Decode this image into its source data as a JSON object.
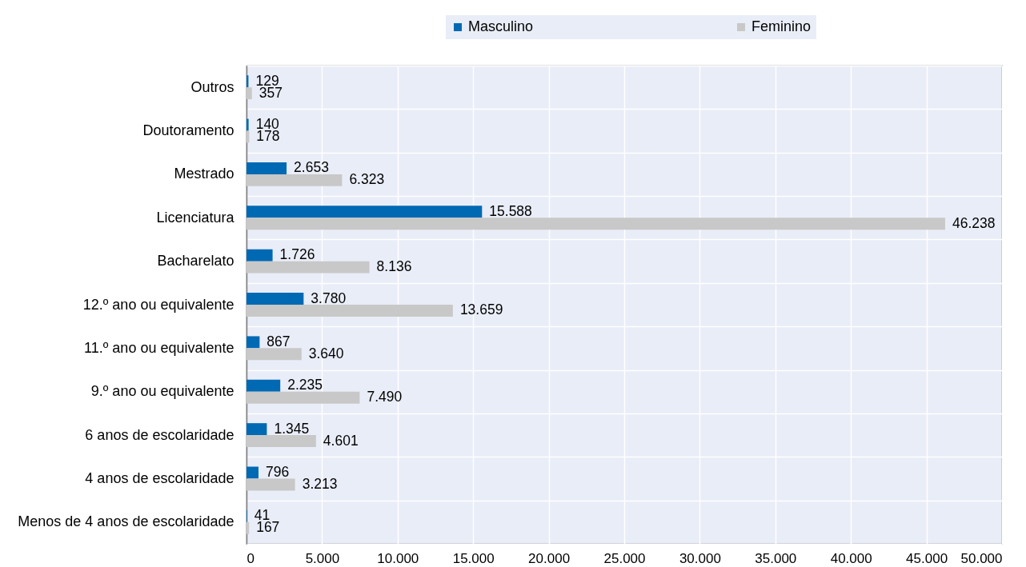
{
  "chart_data": {
    "type": "bar",
    "orientation": "horizontal",
    "legend": "top",
    "grid": true,
    "categories": [
      "Outros",
      "Doutoramento",
      "Mestrado",
      "Licenciatura",
      "Bacharelato",
      "12.º ano ou equivalente",
      "11.º ano ou equivalente",
      "9.º ano ou equivalente",
      "6 anos de escolaridade",
      "4 anos de escolaridade",
      "Menos de 4 anos de escolaridade"
    ],
    "series": [
      {
        "name": "Masculino",
        "color": "#0069b4",
        "values": [
          129,
          140,
          2653,
          15588,
          1726,
          3780,
          867,
          2235,
          1345,
          796,
          41
        ],
        "value_labels": [
          "129",
          "140",
          "2.653",
          "15.588",
          "1.726",
          "3.780",
          "867",
          "2.235",
          "1.345",
          "796",
          "41"
        ]
      },
      {
        "name": "Feminino",
        "color": "#c8c8c8",
        "values": [
          357,
          178,
          6323,
          46238,
          8136,
          13659,
          3640,
          7490,
          4601,
          3213,
          167
        ],
        "value_labels": [
          "357",
          "178",
          "6.323",
          "46.238",
          "8.136",
          "13.659",
          "3.640",
          "7.490",
          "4.601",
          "3.213",
          "167"
        ]
      }
    ],
    "xlim": [
      0,
      50000
    ],
    "xticks": [
      0,
      {
        "value": 5000,
        "label": "5.000"
      },
      {
        "value": 10000,
        "label": "10.000"
      },
      {
        "value": 15000,
        "label": "15.000"
      },
      {
        "value": 20000,
        "label": "20.000"
      },
      {
        "value": 25000,
        "label": "25.000"
      },
      {
        "value": 30000,
        "label": "30.000"
      },
      {
        "value": 35000,
        "label": "35.000"
      },
      {
        "value": 40000,
        "label": "40.000"
      },
      {
        "value": 45000,
        "label": "45.000"
      },
      {
        "value": 50000,
        "label": "50.000"
      }
    ]
  }
}
